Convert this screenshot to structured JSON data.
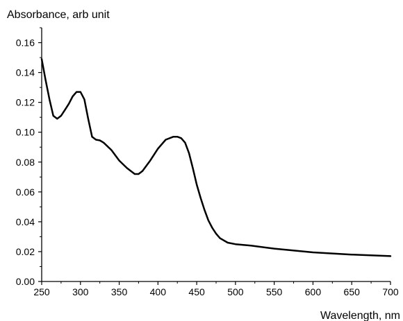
{
  "chart_data": {
    "type": "line",
    "title": "",
    "xlabel": "Wavelength, nm",
    "ylabel": "Absorbance, arb unit",
    "xlim": [
      250,
      700
    ],
    "ylim": [
      0,
      0.17
    ],
    "grid": false,
    "xticks": [
      "250",
      "300",
      "350",
      "400",
      "450",
      "500",
      "550",
      "600",
      "650",
      "700"
    ],
    "yticks": [
      "0.00",
      "0.02",
      "0.04",
      "0.06",
      "0.08",
      "0.10",
      "0.12",
      "0.14",
      "0.16"
    ],
    "series": [
      {
        "name": "",
        "x": [
          250,
          255,
          260,
          265,
          270,
          275,
          280,
          285,
          290,
          295,
          300,
          305,
          310,
          315,
          320,
          325,
          330,
          340,
          350,
          360,
          370,
          375,
          380,
          390,
          400,
          410,
          420,
          425,
          430,
          435,
          440,
          445,
          450,
          455,
          460,
          465,
          470,
          475,
          480,
          490,
          500,
          520,
          550,
          600,
          650,
          700
        ],
        "y": [
          0.149,
          0.135,
          0.122,
          0.111,
          0.109,
          0.111,
          0.115,
          0.119,
          0.124,
          0.127,
          0.127,
          0.122,
          0.109,
          0.097,
          0.095,
          0.0945,
          0.093,
          0.088,
          0.081,
          0.076,
          0.072,
          0.072,
          0.074,
          0.081,
          0.089,
          0.095,
          0.097,
          0.097,
          0.096,
          0.093,
          0.086,
          0.076,
          0.065,
          0.056,
          0.048,
          0.041,
          0.036,
          0.032,
          0.029,
          0.026,
          0.025,
          0.024,
          0.022,
          0.0195,
          0.018,
          0.017
        ]
      }
    ]
  }
}
